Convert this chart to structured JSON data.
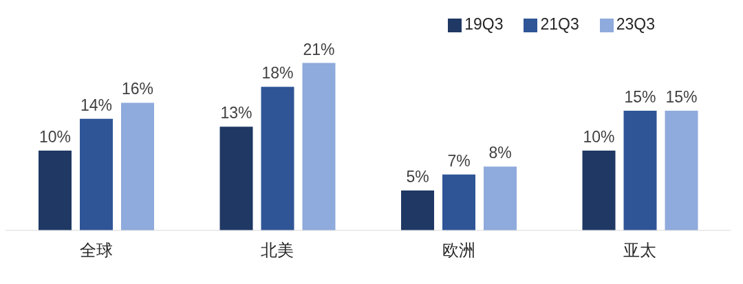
{
  "chart_data": {
    "type": "bar",
    "categories": [
      "全球",
      "北美",
      "欧洲",
      "亚太"
    ],
    "series": [
      {
        "name": "19Q3",
        "color": "#1f3864",
        "values": [
          10,
          13,
          5,
          10
        ],
        "value_labels": [
          "10%",
          "13%",
          "5%",
          "10%"
        ]
      },
      {
        "name": "21Q3",
        "color": "#2f5597",
        "values": [
          14,
          18,
          7,
          15
        ],
        "value_labels": [
          "14%",
          "18%",
          "7%",
          "15%"
        ]
      },
      {
        "name": "23Q3",
        "color": "#8faadc",
        "values": [
          16,
          21,
          8,
          15
        ],
        "value_labels": [
          "16%",
          "21%",
          "8%",
          "15%"
        ]
      }
    ],
    "legend": "top right",
    "grid": false
  }
}
